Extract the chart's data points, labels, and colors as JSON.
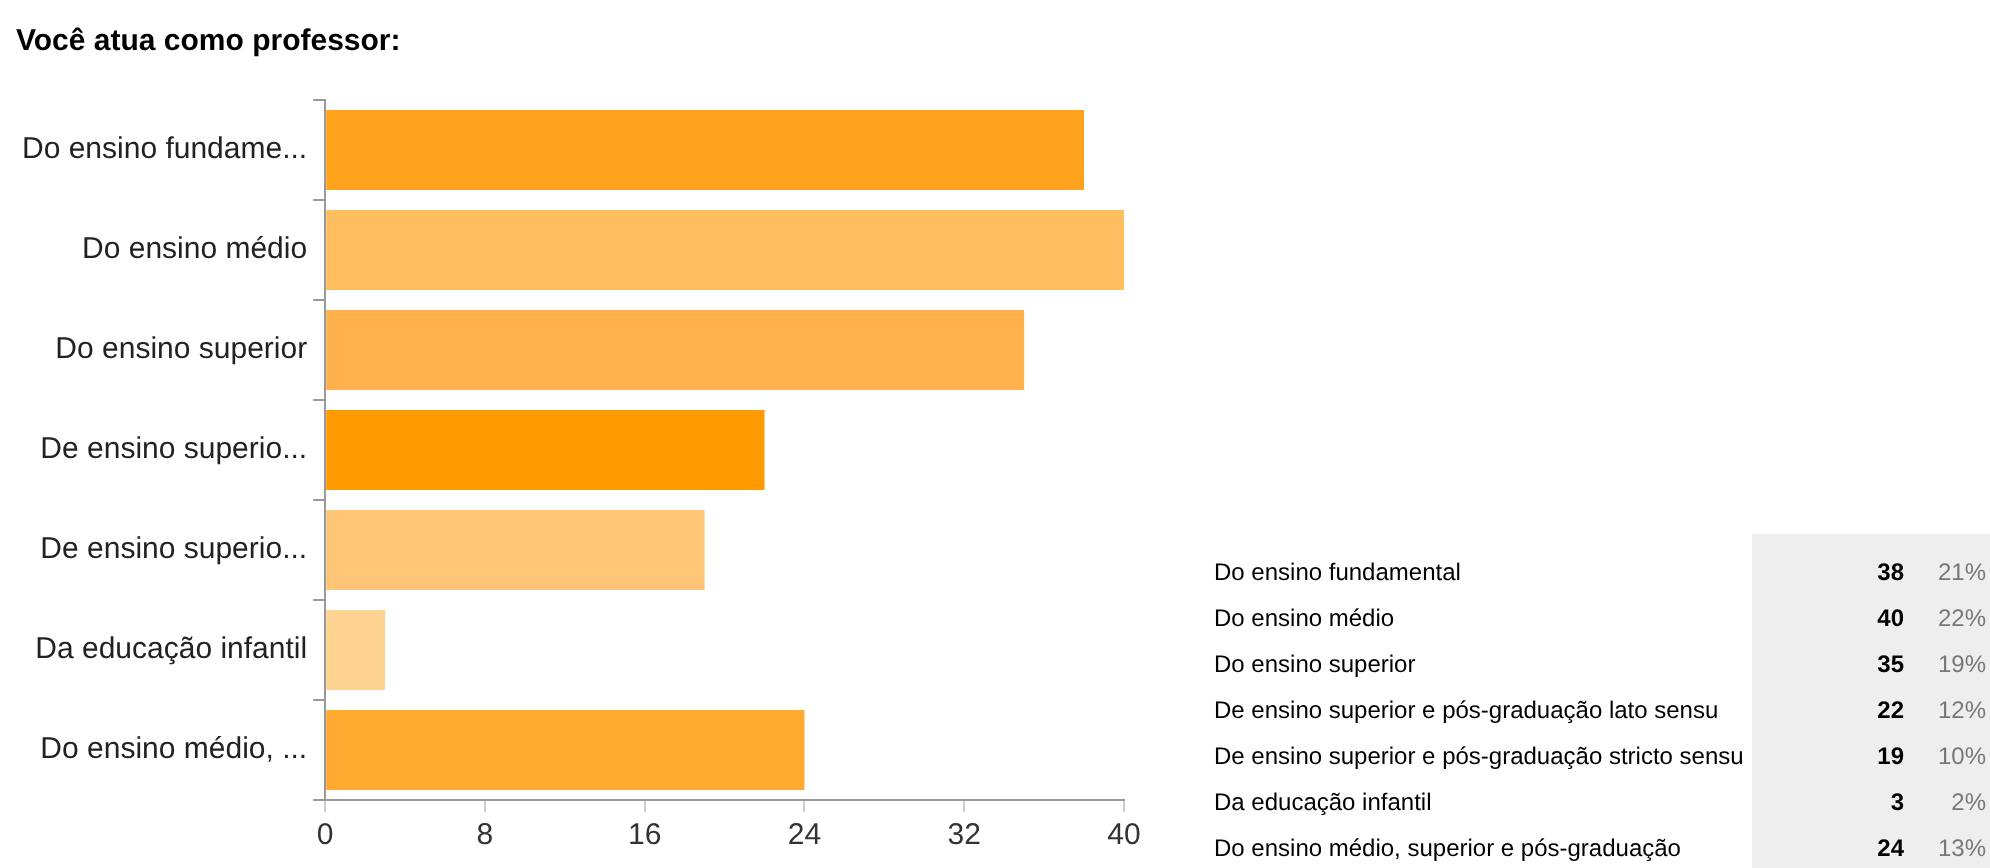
{
  "chart_data": {
    "type": "bar",
    "orientation": "horizontal",
    "title": "Você atua como professor:",
    "categories": [
      "Do ensino fundame...",
      "Do ensino médio",
      "Do ensino superior",
      "De ensino superio...",
      "De ensino superio...",
      "Da educação infantil",
      "Do ensino médio, ..."
    ],
    "values": [
      38,
      40,
      35,
      22,
      19,
      3,
      24
    ],
    "colors": [
      "#ffa31c",
      "#ffbf60",
      "#ffb24b",
      "#ff9a00",
      "#ffc677",
      "#ffd391",
      "#ffab31"
    ],
    "xlim": [
      0,
      40
    ],
    "xticks": [
      0,
      8,
      16,
      24,
      32,
      40
    ],
    "grid": false,
    "legend": false,
    "annotations": [
      "Do ensino fundamental",
      "Do ensino médio",
      "Do ensino superior",
      "De ensino superior e pós-graduação lato sensu",
      "De ensino superior e pós-graduação stricto sensu",
      "Da educação infantil",
      "Do ensino médio, superior e pós-graduação",
      "38",
      "40",
      "35",
      "22",
      "19",
      "3",
      "24",
      "21%",
      "22%",
      "19%",
      "12%",
      "10%",
      "2%",
      "13%"
    ]
  }
}
